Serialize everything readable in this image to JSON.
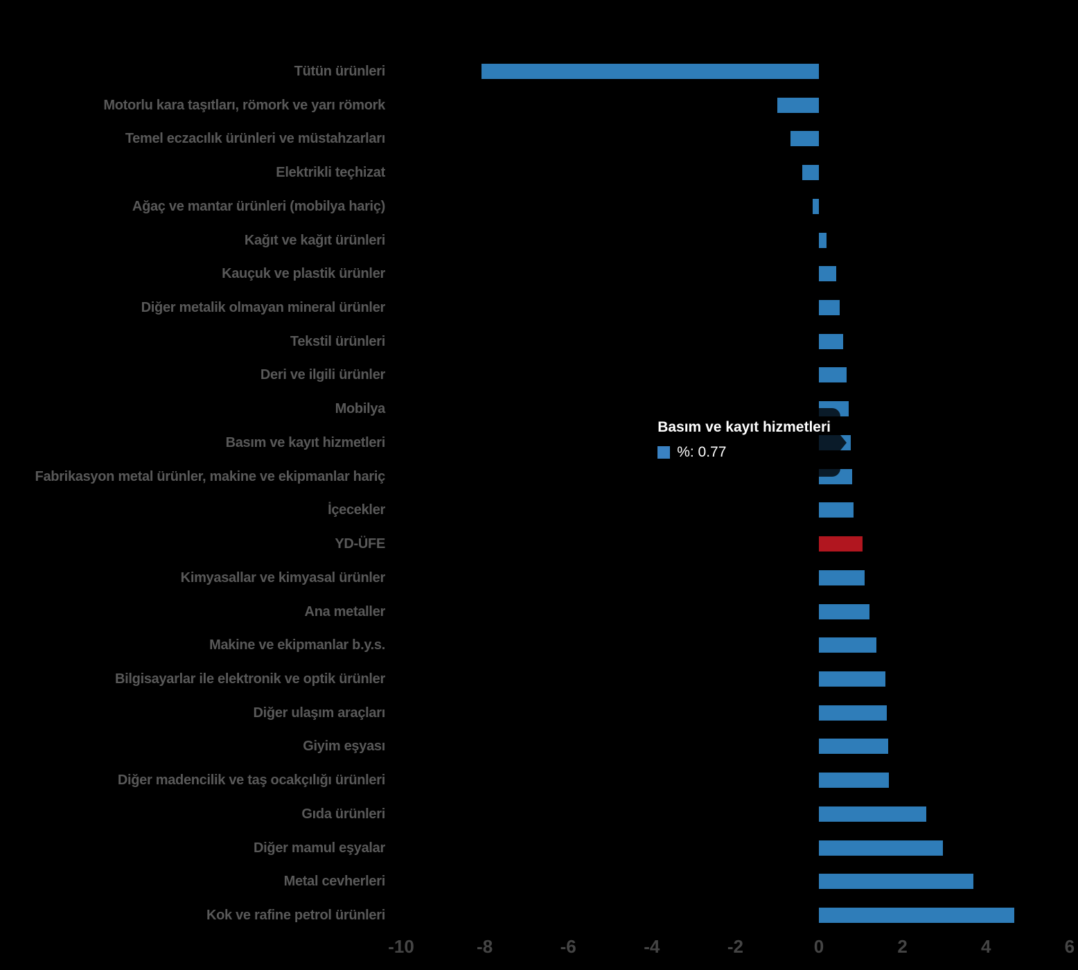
{
  "tooltip": {
    "title": "Basım ve kayıt hizmetleri",
    "text": "%: 0.77",
    "series_swatch_color": "#3a82c3"
  },
  "chart_data": {
    "type": "bar",
    "orientation": "horizontal",
    "series_name": "%",
    "x_axis": {
      "ticks": [
        -10,
        -8,
        -6,
        -4,
        -2,
        0,
        2,
        4,
        6
      ],
      "range": [
        -10.6,
        6.2
      ],
      "grid": false
    },
    "categories": [
      "Tütün ürünleri",
      "Motorlu kara taşıtları, römork ve yarı römork",
      "Temel eczacılık ürünleri ve müstahzarları",
      "Elektrikli teçhizat",
      "Ağaç ve mantar ürünleri (mobilya hariç)",
      "Kağıt ve kağıt ürünleri",
      "Kauçuk ve plastik ürünler",
      "Diğer metalik olmayan mineral ürünler",
      "Tekstil ürünleri",
      "Deri ve ilgili ürünler",
      "Mobilya",
      "Basım ve kayıt hizmetleri",
      "Fabrikasyon metal ürünler, makine ve ekipmanlar hariç",
      "İçecekler",
      "YD-ÜFE",
      "Kimyasallar ve kimyasal ürünler",
      "Ana metaller",
      "Makine ve ekipmanlar b.y.s.",
      "Bilgisayarlar ile elektronik ve optik ürünler",
      "Diğer ulaşım araçları",
      "Giyim eşyası",
      "Diğer madencilik ve taş ocakçılığı ürünleri",
      "Gıda ürünleri",
      "Diğer mamul eşyalar",
      "Metal cevherleri",
      "Kok ve rafine petrol ürünleri"
    ],
    "values": [
      -8.08,
      -0.99,
      -0.68,
      -0.4,
      -0.15,
      0.18,
      0.41,
      0.5,
      0.58,
      0.67,
      0.71,
      0.77,
      0.8,
      0.83,
      1.04,
      1.09,
      1.21,
      1.38,
      1.6,
      1.62,
      1.66,
      1.67,
      2.57,
      2.97,
      3.7,
      4.67
    ],
    "highlight_category": "YD-ÜFE",
    "hovered_category": "Basım ve kayıt hizmetleri",
    "hovered_value": 0.77,
    "colors": {
      "bar": "#2f7db9",
      "highlight": "#b1161f",
      "category_label": "#595959",
      "tick_label": "#454545",
      "tooltip_text": "#ffffff",
      "background": "#000000"
    }
  }
}
